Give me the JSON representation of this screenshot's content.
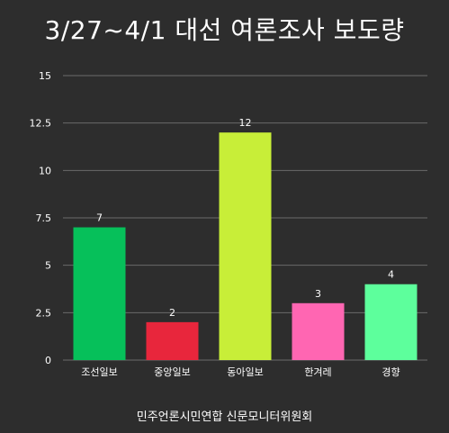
{
  "chart_data": {
    "type": "bar",
    "title": "3/27~4/1 대선 여론조사 보도량",
    "categories": [
      "조선일보",
      "중앙일보",
      "동아일보",
      "한겨레",
      "경향"
    ],
    "values": [
      7,
      2,
      12,
      3,
      4
    ],
    "data_labels": [
      "7",
      "2",
      "12",
      "3",
      "4"
    ],
    "bar_colors": [
      "#06c05a",
      "#e8263c",
      "#c8ee38",
      "#ff66b2",
      "#5dff9c"
    ],
    "y_ticks": [
      0,
      2.5,
      5,
      7.5,
      10,
      12.5,
      15
    ],
    "y_tick_labels": [
      "0",
      "2.5",
      "5",
      "7.5",
      "10",
      "12.5",
      "15"
    ],
    "ylim": [
      0,
      15
    ],
    "xlabel": "",
    "ylabel": "",
    "grid": true,
    "legend": "none"
  },
  "source": "민주언론시민연합 신문모니터위원회",
  "colors": {
    "background": "#2d2d2d",
    "grid": "#6a6a6a",
    "text": "#ffffff"
  }
}
